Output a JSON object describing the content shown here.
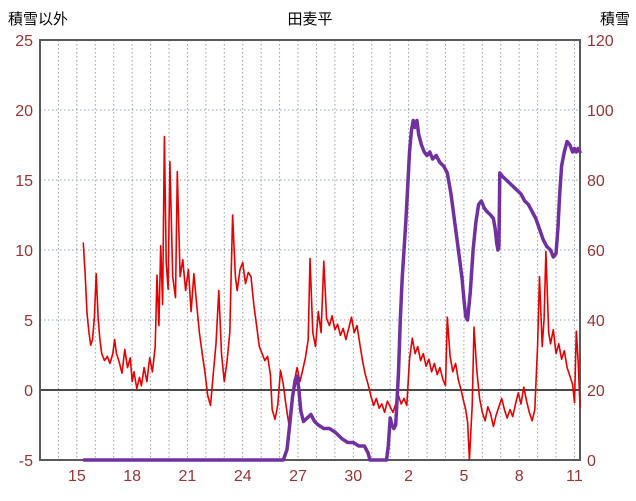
{
  "chart_data": {
    "type": "line",
    "title": "田麦平",
    "left_axis": {
      "label": "積雪以外",
      "min": -5,
      "max": 25,
      "ticks": [
        25,
        20,
        15,
        10,
        5,
        0,
        -5
      ]
    },
    "right_axis": {
      "label": "積雪",
      "min": 0,
      "max": 120,
      "ticks": [
        120,
        100,
        80,
        60,
        40,
        20,
        0
      ]
    },
    "x_axis": {
      "min": 13,
      "max": 42.3,
      "tick_positions": [
        15,
        18,
        21,
        24,
        27,
        30,
        33,
        36,
        39,
        42
      ],
      "tick_labels": [
        "15",
        "18",
        "21",
        "24",
        "27",
        "30",
        "2",
        "5",
        "8",
        "11"
      ],
      "grid_interval": 1
    },
    "colors": {
      "grid": "#93a1b1",
      "frame": "#595959",
      "zero_line": "#4a4a4a",
      "tick_label": "#993333",
      "series_red": "#e60000",
      "series_purple": "#7030a0"
    },
    "series": [
      {
        "name": "積雪以外",
        "axis": "left",
        "color": "#e60000",
        "width": 1.6,
        "points": [
          [
            15.35,
            10.5
          ],
          [
            15.45,
            8.2
          ],
          [
            15.55,
            5.5
          ],
          [
            15.65,
            4.2
          ],
          [
            15.75,
            3.2
          ],
          [
            15.85,
            3.6
          ],
          [
            15.95,
            5.2
          ],
          [
            16.05,
            8.3
          ],
          [
            16.15,
            5.2
          ],
          [
            16.25,
            3.6
          ],
          [
            16.35,
            2.6
          ],
          [
            16.5,
            2.1
          ],
          [
            16.65,
            2.4
          ],
          [
            16.8,
            1.9
          ],
          [
            16.95,
            2.6
          ],
          [
            17.05,
            3.6
          ],
          [
            17.15,
            2.6
          ],
          [
            17.3,
            2.0
          ],
          [
            17.45,
            1.2
          ],
          [
            17.6,
            2.9
          ],
          [
            17.75,
            1.6
          ],
          [
            17.9,
            2.3
          ],
          [
            18.0,
            0.6
          ],
          [
            18.1,
            1.3
          ],
          [
            18.25,
            0.1
          ],
          [
            18.4,
            0.9
          ],
          [
            18.5,
            0.3
          ],
          [
            18.65,
            1.6
          ],
          [
            18.8,
            0.6
          ],
          [
            18.95,
            2.3
          ],
          [
            19.1,
            1.3
          ],
          [
            19.25,
            3.1
          ],
          [
            19.35,
            8.2
          ],
          [
            19.45,
            4.6
          ],
          [
            19.55,
            10.3
          ],
          [
            19.65,
            6.1
          ],
          [
            19.75,
            18.1
          ],
          [
            19.85,
            9.1
          ],
          [
            19.95,
            7.2
          ],
          [
            20.05,
            16.3
          ],
          [
            20.2,
            8.1
          ],
          [
            20.35,
            6.6
          ],
          [
            20.45,
            15.6
          ],
          [
            20.6,
            8.1
          ],
          [
            20.75,
            9.3
          ],
          [
            20.9,
            7.1
          ],
          [
            21.05,
            8.6
          ],
          [
            21.2,
            5.6
          ],
          [
            21.35,
            8.3
          ],
          [
            21.5,
            6.1
          ],
          [
            21.65,
            4.1
          ],
          [
            21.8,
            2.6
          ],
          [
            21.95,
            1.3
          ],
          [
            22.1,
            -0.4
          ],
          [
            22.25,
            -1.1
          ],
          [
            22.4,
            1.1
          ],
          [
            22.55,
            3.3
          ],
          [
            22.7,
            7.1
          ],
          [
            22.85,
            2.6
          ],
          [
            23.0,
            0.6
          ],
          [
            23.15,
            2.1
          ],
          [
            23.3,
            4.1
          ],
          [
            23.45,
            12.5
          ],
          [
            23.6,
            8.1
          ],
          [
            23.7,
            7.1
          ],
          [
            23.85,
            8.6
          ],
          [
            24.0,
            9.1
          ],
          [
            24.15,
            7.6
          ],
          [
            24.3,
            8.4
          ],
          [
            24.45,
            8.1
          ],
          [
            24.6,
            6.1
          ],
          [
            24.75,
            4.6
          ],
          [
            24.9,
            3.1
          ],
          [
            25.05,
            2.6
          ],
          [
            25.2,
            2.1
          ],
          [
            25.35,
            2.4
          ],
          [
            25.5,
            1.1
          ],
          [
            25.6,
            -1.4
          ],
          [
            25.75,
            -2.1
          ],
          [
            25.9,
            -1.1
          ],
          [
            26.05,
            1.4
          ],
          [
            26.2,
            0.4
          ],
          [
            26.35,
            -1.1
          ],
          [
            26.5,
            -2.4
          ],
          [
            26.65,
            -1.1
          ],
          [
            26.8,
            0.6
          ],
          [
            26.95,
            1.6
          ],
          [
            27.1,
            0.6
          ],
          [
            27.25,
            1.4
          ],
          [
            27.4,
            2.3
          ],
          [
            27.55,
            3.6
          ],
          [
            27.65,
            9.4
          ],
          [
            27.8,
            4.1
          ],
          [
            27.95,
            3.1
          ],
          [
            28.1,
            5.6
          ],
          [
            28.25,
            4.1
          ],
          [
            28.4,
            9.2
          ],
          [
            28.55,
            5.1
          ],
          [
            28.7,
            4.6
          ],
          [
            28.85,
            5.3
          ],
          [
            29.0,
            4.3
          ],
          [
            29.15,
            4.7
          ],
          [
            29.3,
            3.9
          ],
          [
            29.45,
            4.4
          ],
          [
            29.6,
            3.6
          ],
          [
            29.75,
            4.4
          ],
          [
            29.9,
            5.2
          ],
          [
            30.05,
            4.1
          ],
          [
            30.2,
            4.6
          ],
          [
            30.35,
            3.3
          ],
          [
            30.5,
            2.1
          ],
          [
            30.65,
            1.1
          ],
          [
            30.8,
            0.4
          ],
          [
            30.95,
            -0.4
          ],
          [
            31.1,
            -1.1
          ],
          [
            31.25,
            -0.6
          ],
          [
            31.4,
            -1.3
          ],
          [
            31.55,
            -1.0
          ],
          [
            31.7,
            -1.6
          ],
          [
            31.85,
            -0.8
          ],
          [
            32.0,
            -1.2
          ],
          [
            32.15,
            -1.6
          ],
          [
            32.3,
            -1.0
          ],
          [
            32.45,
            -0.4
          ],
          [
            32.6,
            -1.0
          ],
          [
            32.75,
            -0.6
          ],
          [
            32.9,
            -1.1
          ],
          [
            33.05,
            2.2
          ],
          [
            33.2,
            3.7
          ],
          [
            33.35,
            2.6
          ],
          [
            33.5,
            3.1
          ],
          [
            33.65,
            2.1
          ],
          [
            33.8,
            2.6
          ],
          [
            33.95,
            1.7
          ],
          [
            34.1,
            2.2
          ],
          [
            34.25,
            1.3
          ],
          [
            34.4,
            1.9
          ],
          [
            34.55,
            1.1
          ],
          [
            34.7,
            1.6
          ],
          [
            34.85,
            0.8
          ],
          [
            35.0,
            0.3
          ],
          [
            35.1,
            5.2
          ],
          [
            35.25,
            2.4
          ],
          [
            35.4,
            1.3
          ],
          [
            35.55,
            1.9
          ],
          [
            35.7,
            0.7
          ],
          [
            35.85,
            0.0
          ],
          [
            36.0,
            -0.9
          ],
          [
            36.1,
            -1.4
          ],
          [
            36.2,
            -2.3
          ],
          [
            36.3,
            -5.0
          ],
          [
            36.45,
            -1.1
          ],
          [
            36.55,
            4.5
          ],
          [
            36.7,
            1.4
          ],
          [
            36.85,
            -0.6
          ],
          [
            37.0,
            -1.6
          ],
          [
            37.15,
            -2.2
          ],
          [
            37.3,
            -1.2
          ],
          [
            37.45,
            -1.7
          ],
          [
            37.6,
            -2.6
          ],
          [
            37.75,
            -1.8
          ],
          [
            37.9,
            -1.2
          ],
          [
            38.05,
            -0.6
          ],
          [
            38.2,
            -1.4
          ],
          [
            38.35,
            -2.0
          ],
          [
            38.5,
            -1.4
          ],
          [
            38.65,
            -1.9
          ],
          [
            38.8,
            -1.0
          ],
          [
            38.95,
            -0.2
          ],
          [
            39.1,
            -1.0
          ],
          [
            39.25,
            0.2
          ],
          [
            39.4,
            -0.8
          ],
          [
            39.55,
            -1.6
          ],
          [
            39.7,
            -2.2
          ],
          [
            39.85,
            -1.4
          ],
          [
            40.0,
            3.2
          ],
          [
            40.1,
            8.1
          ],
          [
            40.25,
            3.1
          ],
          [
            40.35,
            5.1
          ],
          [
            40.45,
            9.9
          ],
          [
            40.6,
            4.1
          ],
          [
            40.7,
            3.3
          ],
          [
            40.85,
            4.3
          ],
          [
            41.0,
            2.6
          ],
          [
            41.15,
            3.3
          ],
          [
            41.3,
            2.2
          ],
          [
            41.45,
            2.8
          ],
          [
            41.6,
            1.6
          ],
          [
            41.75,
            1.0
          ],
          [
            41.9,
            0.4
          ],
          [
            42.0,
            -0.9
          ],
          [
            42.1,
            4.2
          ],
          [
            42.2,
            2.0
          ],
          [
            42.3,
            -1.2
          ]
        ]
      },
      {
        "name": "積雪",
        "axis": "right",
        "color": "#7030a0",
        "width": 3.5,
        "points": [
          [
            15.4,
            0
          ],
          [
            26.2,
            0
          ],
          [
            26.4,
            3
          ],
          [
            26.55,
            10
          ],
          [
            26.7,
            18
          ],
          [
            26.85,
            23
          ],
          [
            26.95,
            24
          ],
          [
            27.05,
            20
          ],
          [
            27.15,
            14
          ],
          [
            27.3,
            11
          ],
          [
            27.5,
            12
          ],
          [
            27.7,
            13
          ],
          [
            27.9,
            11
          ],
          [
            28.1,
            10
          ],
          [
            28.4,
            9
          ],
          [
            28.7,
            9
          ],
          [
            29.0,
            8
          ],
          [
            29.2,
            7
          ],
          [
            29.4,
            6
          ],
          [
            29.7,
            5
          ],
          [
            30.0,
            5
          ],
          [
            30.3,
            4
          ],
          [
            30.6,
            4
          ],
          [
            30.8,
            2
          ],
          [
            30.9,
            0
          ],
          [
            31.8,
            0
          ],
          [
            31.9,
            4
          ],
          [
            32.0,
            12
          ],
          [
            32.1,
            10
          ],
          [
            32.2,
            9
          ],
          [
            32.3,
            10
          ],
          [
            32.45,
            25
          ],
          [
            32.55,
            40
          ],
          [
            32.65,
            52
          ],
          [
            32.75,
            60
          ],
          [
            32.85,
            68
          ],
          [
            32.95,
            78
          ],
          [
            33.05,
            88
          ],
          [
            33.15,
            94
          ],
          [
            33.25,
            97
          ],
          [
            33.35,
            95
          ],
          [
            33.45,
            97
          ],
          [
            33.55,
            93
          ],
          [
            33.7,
            90
          ],
          [
            33.85,
            88
          ],
          [
            34.0,
            87
          ],
          [
            34.15,
            88
          ],
          [
            34.3,
            86
          ],
          [
            34.5,
            87
          ],
          [
            34.7,
            85
          ],
          [
            34.9,
            84
          ],
          [
            35.1,
            82
          ],
          [
            35.3,
            76
          ],
          [
            35.5,
            68
          ],
          [
            35.7,
            60
          ],
          [
            35.9,
            52
          ],
          [
            36.0,
            46
          ],
          [
            36.1,
            41
          ],
          [
            36.2,
            40
          ],
          [
            36.35,
            48
          ],
          [
            36.5,
            60
          ],
          [
            36.65,
            68
          ],
          [
            36.8,
            73
          ],
          [
            36.95,
            74
          ],
          [
            37.1,
            72
          ],
          [
            37.25,
            71
          ],
          [
            37.45,
            70
          ],
          [
            37.6,
            69
          ],
          [
            37.7,
            66
          ],
          [
            37.78,
            62
          ],
          [
            37.85,
            60
          ],
          [
            37.9,
            61
          ],
          [
            37.95,
            82
          ],
          [
            38.1,
            81
          ],
          [
            38.3,
            80
          ],
          [
            38.5,
            79
          ],
          [
            38.7,
            78
          ],
          [
            38.9,
            77
          ],
          [
            39.1,
            76
          ],
          [
            39.3,
            74
          ],
          [
            39.5,
            73
          ],
          [
            39.7,
            71
          ],
          [
            39.9,
            69
          ],
          [
            40.1,
            66
          ],
          [
            40.3,
            63
          ],
          [
            40.5,
            61
          ],
          [
            40.7,
            60
          ],
          [
            40.85,
            58
          ],
          [
            41.0,
            59
          ],
          [
            41.1,
            66
          ],
          [
            41.2,
            76
          ],
          [
            41.3,
            84
          ],
          [
            41.45,
            88
          ],
          [
            41.6,
            91
          ],
          [
            41.75,
            90
          ],
          [
            41.9,
            88
          ],
          [
            42.0,
            89
          ],
          [
            42.1,
            88
          ],
          [
            42.2,
            89
          ],
          [
            42.3,
            88
          ]
        ]
      }
    ]
  }
}
